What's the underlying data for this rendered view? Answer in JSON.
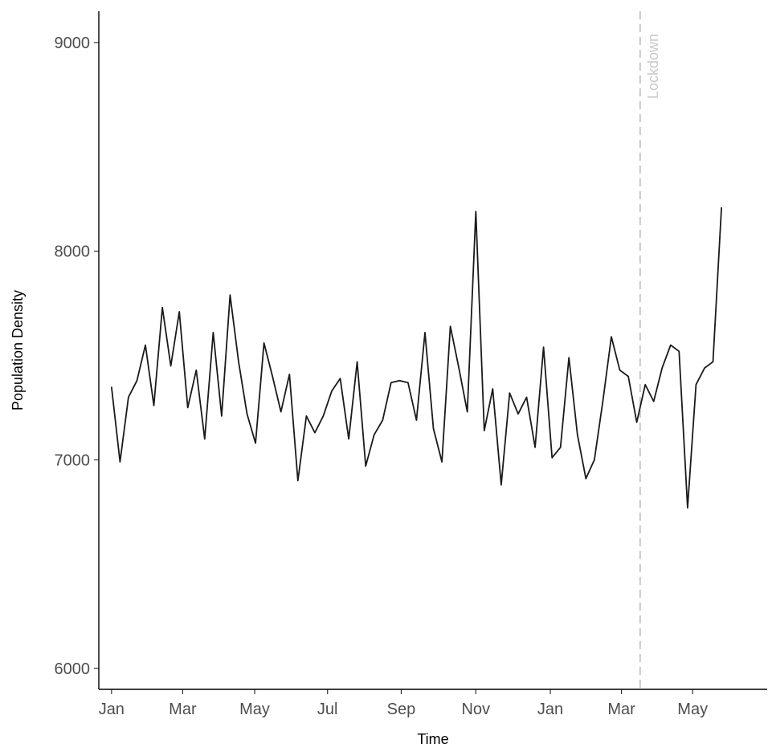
{
  "chart_data": {
    "type": "line",
    "title": "",
    "xlabel": "Time",
    "ylabel": "Population Density",
    "ylim": [
      5900,
      9150
    ],
    "yticks": [
      6000,
      7000,
      8000,
      9000
    ],
    "xtick_labels": [
      "Jan",
      "Mar",
      "May",
      "Jul",
      "Sep",
      "Nov",
      "Jan",
      "Mar",
      "May"
    ],
    "xlim_weeks": [
      -1.5,
      77.4
    ],
    "xtick_weeks": [
      0,
      8.4,
      16.9,
      25.5,
      34.2,
      43,
      51.8,
      60.2,
      68.6
    ],
    "grid": false,
    "line_color": "#1a1a1a",
    "annotation": {
      "label": "Lockdown",
      "at_week": 62.4,
      "color": "#c8c8c8",
      "style": "dashed"
    },
    "series": [
      {
        "name": "",
        "x_unit": "weeks since first Jan tick",
        "values": [
          7350,
          6990,
          7300,
          7380,
          7550,
          7260,
          7730,
          7450,
          7710,
          7250,
          7430,
          7100,
          7610,
          7210,
          7790,
          7470,
          7220,
          7080,
          7560,
          7400,
          7230,
          7410,
          6900,
          7210,
          7130,
          7210,
          7330,
          7390,
          7100,
          7470,
          6970,
          7120,
          7190,
          7370,
          7380,
          7370,
          7190,
          7610,
          7150,
          6990,
          7640,
          7440,
          7230,
          8190,
          7140,
          7340,
          6880,
          7320,
          7220,
          7300,
          7060,
          7540,
          7010,
          7060,
          7490,
          7120,
          6910,
          7000,
          7280,
          7590,
          7430,
          7400,
          7180,
          7360,
          7280,
          7440,
          7550,
          7520,
          6770,
          7360,
          7440,
          7470,
          8210
        ]
      }
    ]
  }
}
